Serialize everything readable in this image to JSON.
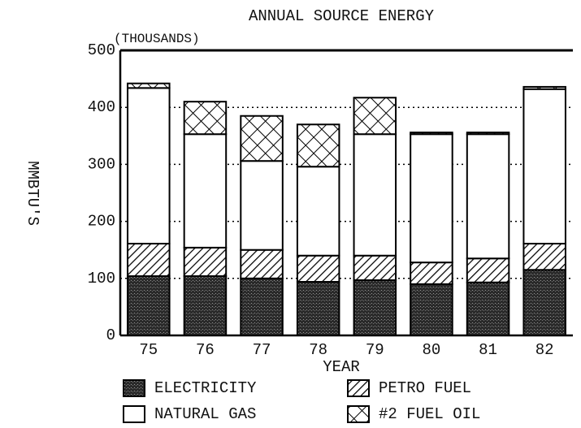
{
  "chart_data": {
    "type": "bar",
    "stacked": true,
    "title": "ANNUAL SOURCE ENERGY",
    "subtitle": "(THOUSANDS)",
    "y_label": "MMBTU'S",
    "x_label": "YEAR",
    "categories": [
      "75",
      "76",
      "77",
      "78",
      "79",
      "80",
      "81",
      "82"
    ],
    "series": [
      {
        "name": "ELECTRICITY",
        "color": "#2a2a2a",
        "pattern": "stipple",
        "values": [
          104,
          104,
          100,
          94,
          97,
          90,
          93,
          115
        ]
      },
      {
        "name": "PETRO FUEL",
        "color": "#000000",
        "pattern": "diagonal",
        "values": [
          57,
          50,
          50,
          46,
          43,
          38,
          42,
          46
        ]
      },
      {
        "name": "NATURAL GAS",
        "color": "#ffffff",
        "pattern": "solid",
        "values": [
          273,
          199,
          156,
          156,
          213,
          225,
          218,
          271
        ]
      },
      {
        "name": "#2 FUEL OIL",
        "color": "#000000",
        "pattern": "cross",
        "values": [
          8,
          57,
          79,
          74,
          64,
          3,
          3,
          4
        ]
      }
    ],
    "ylim": [
      0,
      500
    ],
    "yticks": [
      0,
      100,
      200,
      300,
      400,
      500
    ],
    "grid": true
  }
}
